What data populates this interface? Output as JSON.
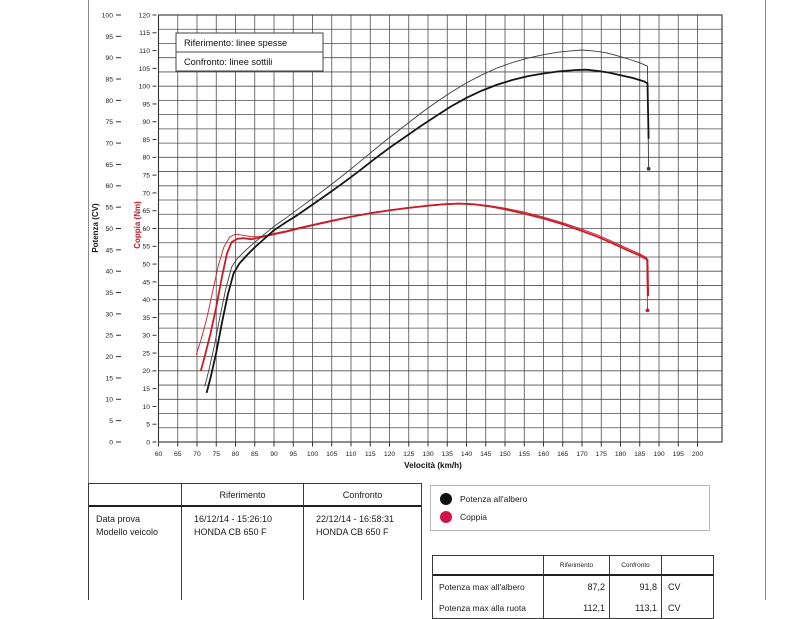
{
  "page": {
    "background": "#ffffff",
    "frame_color": "#8a8a8a"
  },
  "chart_data": {
    "type": "line",
    "title": "",
    "xlabel": "Velocità (km/h)",
    "x_range": [
      60,
      200
    ],
    "x_tick_step": 5,
    "grid": true,
    "legend_position": "top-left-inside",
    "legend_note": [
      "Riferimento: linee spesse",
      "Confronto: linee sottili"
    ],
    "axes": {
      "power": {
        "label": "Potenza (CV)",
        "min": 0,
        "max": 100,
        "tick_step": 5,
        "title_color": "#1a1a1a",
        "tick_color": "#222222"
      },
      "torque": {
        "label": "Coppia (Nm)",
        "min": 0,
        "max": 120,
        "tick_step": 5,
        "title_color": "#c41826",
        "tick_color": "#222222"
      }
    },
    "series": [
      {
        "name": "Coppia (Riferimento)",
        "axis": "torque",
        "style": "thick",
        "color": "#c81d28",
        "width": 1.8,
        "end_dot": false,
        "points": [
          [
            71,
            20
          ],
          [
            72,
            24
          ],
          [
            73.5,
            30.5
          ],
          [
            75,
            38
          ],
          [
            76.5,
            46.5
          ],
          [
            77.8,
            53
          ],
          [
            79,
            56.2
          ],
          [
            80.5,
            57.1
          ],
          [
            82,
            57.3
          ],
          [
            84,
            57
          ],
          [
            86,
            57.4
          ],
          [
            88,
            57.9
          ],
          [
            90,
            58.4
          ],
          [
            93,
            59.1
          ],
          [
            96,
            59.9
          ],
          [
            100,
            60.9
          ],
          [
            105,
            62.1
          ],
          [
            110,
            63.3
          ],
          [
            115,
            64.3
          ],
          [
            120,
            65.1
          ],
          [
            125,
            65.8
          ],
          [
            130,
            66.4
          ],
          [
            134,
            66.8
          ],
          [
            138,
            67
          ],
          [
            142,
            66.8
          ],
          [
            146,
            66.2
          ],
          [
            150,
            65.4
          ],
          [
            155,
            64.2
          ],
          [
            160,
            62.8
          ],
          [
            165,
            61.2
          ],
          [
            170,
            59.3
          ],
          [
            174,
            57.7
          ],
          [
            178,
            55.8
          ],
          [
            182,
            53.8
          ],
          [
            185,
            52.4
          ],
          [
            187,
            51.2
          ],
          [
            187.2,
            41
          ]
        ]
      },
      {
        "name": "Coppia (Confronto)",
        "axis": "torque",
        "style": "thin",
        "color": "#c81d28",
        "width": 0.9,
        "end_dot": true,
        "points": [
          [
            69.8,
            24.5
          ],
          [
            71,
            28.5
          ],
          [
            72.5,
            34.5
          ],
          [
            74,
            42
          ],
          [
            75.5,
            49.5
          ],
          [
            77,
            54.8
          ],
          [
            78.5,
            57.6
          ],
          [
            80,
            58.4
          ],
          [
            82,
            58.1
          ],
          [
            84,
            57.7
          ],
          [
            86,
            57.7
          ],
          [
            88,
            58.1
          ],
          [
            90,
            58.6
          ],
          [
            93,
            59.3
          ],
          [
            96,
            60.1
          ],
          [
            100,
            61.1
          ],
          [
            105,
            62.3
          ],
          [
            110,
            63.4
          ],
          [
            115,
            64.4
          ],
          [
            120,
            65.2
          ],
          [
            125,
            65.9
          ],
          [
            130,
            66.5
          ],
          [
            134,
            66.9
          ],
          [
            138,
            67.1
          ],
          [
            142,
            66.9
          ],
          [
            146,
            66.4
          ],
          [
            150,
            65.7
          ],
          [
            155,
            64.6
          ],
          [
            160,
            63.2
          ],
          [
            165,
            61.6
          ],
          [
            170,
            59.8
          ],
          [
            174,
            58.2
          ],
          [
            178,
            56.3
          ],
          [
            182,
            54.3
          ],
          [
            185,
            52.9
          ],
          [
            186.8,
            51.8
          ],
          [
            187,
            37
          ]
        ]
      },
      {
        "name": "Potenza all'albero (Confronto)",
        "axis": "power",
        "style": "thin",
        "color": "#3c3c3c",
        "width": 0.9,
        "end_dot": true,
        "points": [
          [
            72,
            13
          ],
          [
            73,
            16.5
          ],
          [
            74.5,
            22.5
          ],
          [
            76,
            29.5
          ],
          [
            77.5,
            36
          ],
          [
            79,
            41
          ],
          [
            80.5,
            43
          ],
          [
            83,
            45.2
          ],
          [
            85,
            46.8
          ],
          [
            87,
            48.3
          ],
          [
            90,
            50.5
          ],
          [
            93,
            52.4
          ],
          [
            96,
            54.4
          ],
          [
            100,
            57
          ],
          [
            104,
            59.7
          ],
          [
            108,
            62.5
          ],
          [
            112,
            65.4
          ],
          [
            116,
            68.4
          ],
          [
            120,
            71.3
          ],
          [
            124,
            74.1
          ],
          [
            128,
            76.9
          ],
          [
            132,
            79.5
          ],
          [
            136,
            81.9
          ],
          [
            140,
            84.1
          ],
          [
            144,
            86
          ],
          [
            148,
            87.6
          ],
          [
            152,
            88.9
          ],
          [
            156,
            89.9
          ],
          [
            160,
            90.7
          ],
          [
            164,
            91.3
          ],
          [
            167,
            91.6
          ],
          [
            170,
            91.8
          ],
          [
            173,
            91.6
          ],
          [
            176,
            91.2
          ],
          [
            179,
            90.5
          ],
          [
            182,
            89.7
          ],
          [
            185,
            88.8
          ],
          [
            187,
            88
          ],
          [
            187.3,
            64
          ]
        ]
      },
      {
        "name": "Potenza all'albero (Riferimento)",
        "axis": "power",
        "style": "thick",
        "color": "#151515",
        "width": 1.8,
        "end_dot": false,
        "points": [
          [
            72.5,
            11.5
          ],
          [
            73.5,
            15
          ],
          [
            75,
            21
          ],
          [
            76.5,
            28
          ],
          [
            78,
            34.5
          ],
          [
            79.5,
            39.5
          ],
          [
            81,
            41.8
          ],
          [
            83,
            43.8
          ],
          [
            85,
            45.6
          ],
          [
            87,
            47.2
          ],
          [
            90,
            49.6
          ],
          [
            93,
            51.4
          ],
          [
            96,
            53.1
          ],
          [
            100,
            55.6
          ],
          [
            104,
            58.1
          ],
          [
            108,
            60.7
          ],
          [
            112,
            63.4
          ],
          [
            116,
            66.2
          ],
          [
            120,
            68.9
          ],
          [
            124,
            71.4
          ],
          [
            128,
            73.9
          ],
          [
            132,
            76.3
          ],
          [
            136,
            78.6
          ],
          [
            140,
            80.6
          ],
          [
            144,
            82.3
          ],
          [
            148,
            83.7
          ],
          [
            152,
            84.8
          ],
          [
            156,
            85.7
          ],
          [
            160,
            86.3
          ],
          [
            164,
            86.8
          ],
          [
            168,
            87.1
          ],
          [
            171,
            87.2
          ],
          [
            174,
            86.9
          ],
          [
            177,
            86.5
          ],
          [
            180,
            85.9
          ],
          [
            183,
            85.3
          ],
          [
            186,
            84.5
          ],
          [
            187,
            84
          ],
          [
            187.3,
            71
          ]
        ]
      }
    ]
  },
  "left_table": {
    "header_ref": "Riferimento",
    "header_conf": "Confronto",
    "label_line1": "Data prova",
    "label_line2": "Modello veicolo",
    "ref_line1": "16/12/14 - 15:26:10",
    "ref_line2": "HONDA CB 650 F",
    "conf_line1": "22/12/14 - 16:58:31",
    "conf_line2": "HONDA CB 650 F"
  },
  "curve_legend": {
    "items": [
      {
        "label": "Potenza all'albero",
        "color": "#111111"
      },
      {
        "label": "Coppia",
        "color": "#d31245"
      }
    ]
  },
  "result_table": {
    "header_ref": "Riferimento",
    "header_conf": "Confronto",
    "row1": {
      "label": "Potenza max all'albero",
      "ref": "87,2",
      "conf": "91,8",
      "unit": "CV"
    },
    "row2_clipped": {
      "label": "Potenza max alla ruota",
      "ref": "112,1",
      "conf": "113,1",
      "unit": "CV"
    }
  }
}
